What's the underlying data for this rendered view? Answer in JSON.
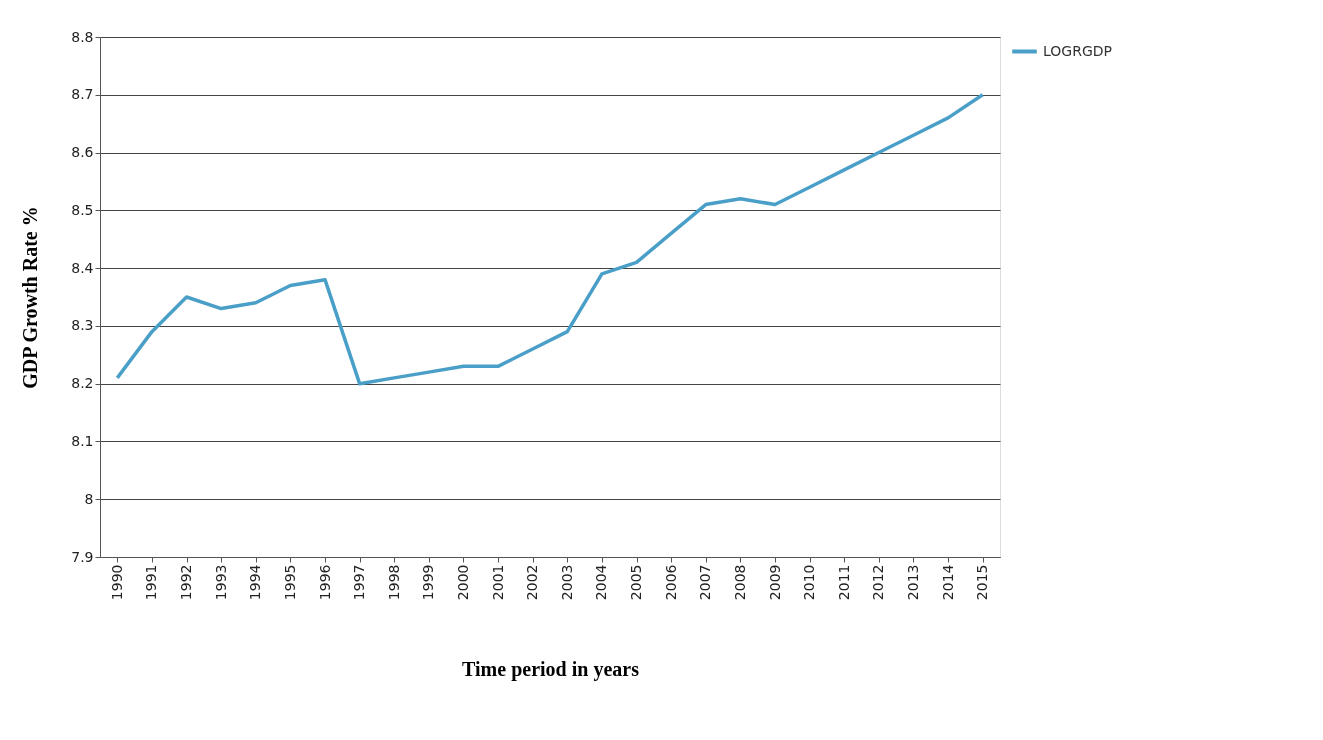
{
  "chart_data": {
    "type": "line",
    "xlabel": "Time period in years",
    "ylabel": "GDP Growth Rate %",
    "categories": [
      "1990",
      "1991",
      "1992",
      "1993",
      "1994",
      "1995",
      "1996",
      "1997",
      "1998",
      "1999",
      "2000",
      "2001",
      "2002",
      "2003",
      "2004",
      "2005",
      "2006",
      "2007",
      "2008",
      "2009",
      "2010",
      "2011",
      "2012",
      "2013",
      "2014",
      "2015"
    ],
    "series": [
      {
        "name": "LOGRGDP",
        "color": "#4a9fc8",
        "values": [
          8.21,
          8.29,
          8.35,
          8.33,
          8.34,
          8.37,
          8.38,
          8.2,
          8.21,
          8.22,
          8.23,
          8.23,
          8.26,
          8.29,
          8.39,
          8.41,
          8.46,
          8.51,
          8.52,
          8.51,
          8.54,
          8.57,
          8.6,
          8.63,
          8.66,
          8.7
        ]
      }
    ],
    "ylim": [
      7.9,
      8.8
    ],
    "yticks": [
      7.9,
      8,
      8.1,
      8.2,
      8.3,
      8.4,
      8.5,
      8.6,
      8.7,
      8.8
    ],
    "grid": "y",
    "legend": "right",
    "marker": "none",
    "line_style": "solid"
  }
}
